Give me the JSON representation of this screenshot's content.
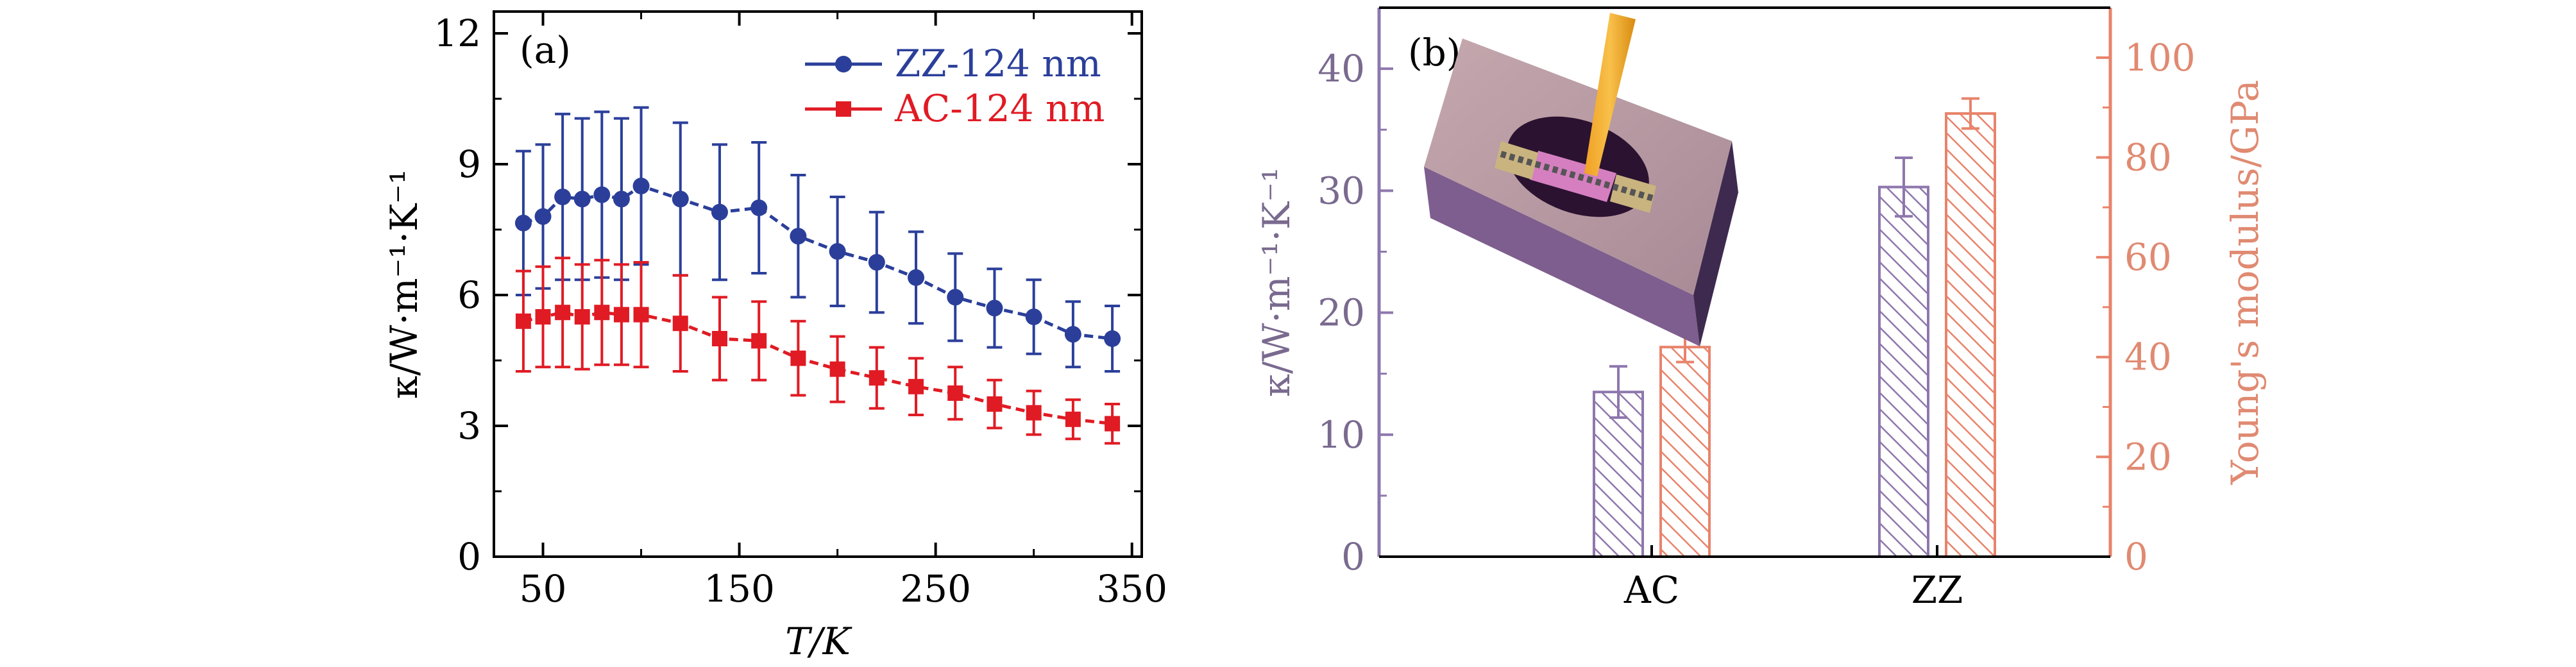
{
  "chart_data": [
    {
      "type": "line",
      "panel_label": "(a)",
      "xlabel": "T/K",
      "ylabel": "κ/W·m⁻¹·K⁻¹",
      "xlim": [
        25,
        355
      ],
      "ylim": [
        0,
        12.5
      ],
      "xticks": [
        50,
        150,
        250,
        350
      ],
      "yticks": [
        0,
        3,
        6,
        9,
        12
      ],
      "legend_position": "top-right",
      "x": [
        40,
        50,
        60,
        70,
        80,
        90,
        100,
        120,
        140,
        160,
        180,
        200,
        220,
        240,
        260,
        280,
        300,
        320,
        340
      ],
      "series": [
        {
          "name": "ZZ-124 nm",
          "color": "#2b3f9a",
          "marker": "circle",
          "values": [
            7.65,
            7.8,
            8.25,
            8.2,
            8.3,
            8.2,
            8.5,
            8.2,
            7.9,
            8.0,
            7.35,
            7.0,
            6.75,
            6.4,
            5.95,
            5.7,
            5.5,
            5.1,
            5.0
          ],
          "errors": [
            1.65,
            1.65,
            1.9,
            1.85,
            1.9,
            1.85,
            1.8,
            1.75,
            1.55,
            1.5,
            1.4,
            1.25,
            1.15,
            1.05,
            1.0,
            0.9,
            0.85,
            0.75,
            0.75
          ]
        },
        {
          "name": "AC-124 nm",
          "color": "#e01b24",
          "marker": "square",
          "values": [
            5.4,
            5.5,
            5.6,
            5.5,
            5.6,
            5.55,
            5.55,
            5.35,
            5.0,
            4.95,
            4.55,
            4.3,
            4.1,
            3.9,
            3.75,
            3.5,
            3.3,
            3.15,
            3.05
          ],
          "errors": [
            1.15,
            1.15,
            1.25,
            1.2,
            1.2,
            1.15,
            1.2,
            1.1,
            0.95,
            0.9,
            0.85,
            0.75,
            0.7,
            0.65,
            0.6,
            0.55,
            0.5,
            0.45,
            0.45
          ]
        }
      ]
    },
    {
      "type": "bar",
      "panel_label": "(b)",
      "categories": [
        "AC",
        "ZZ"
      ],
      "ylabel": "κ/W·m⁻¹·K⁻¹",
      "ylim": [
        0,
        45
      ],
      "yticks": [
        0,
        10,
        20,
        30,
        40
      ],
      "y2label": "Young's modulus/GPa",
      "y2lim": [
        0,
        110
      ],
      "y2ticks": [
        0,
        20,
        40,
        60,
        80,
        100
      ],
      "inset": "schematic-of-suspended-sample-with-probe",
      "series": [
        {
          "axis": "left",
          "color": "#8e77ad",
          "hatch": true,
          "values": [
            13.5,
            30.3
          ],
          "errors": [
            2.1,
            2.4
          ]
        },
        {
          "axis": "right",
          "color": "#e8836b",
          "hatch": true,
          "values": [
            42,
            88.8
          ],
          "errors": [
            3.0,
            3.0
          ]
        }
      ]
    }
  ]
}
